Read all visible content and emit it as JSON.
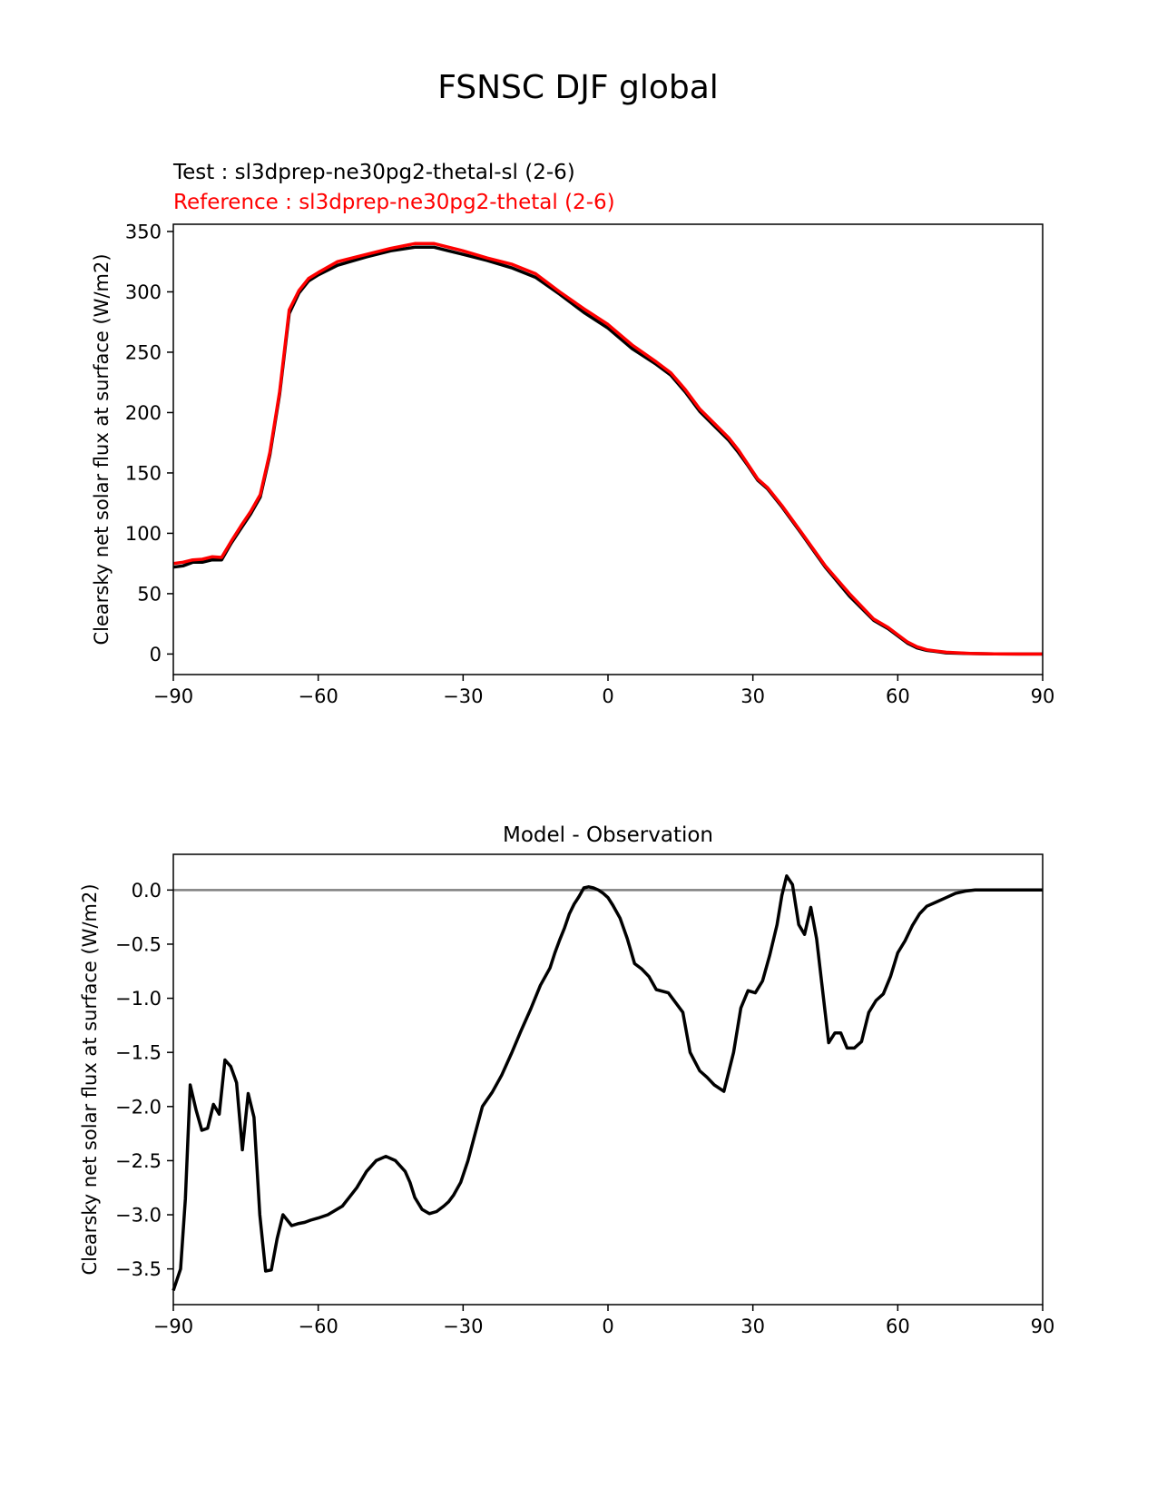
{
  "figure": {
    "title": "FSNSC DJF global",
    "test_label": "Test : sl3dprep-ne30pg2-thetal-sl (2-6)",
    "reference_label": "Reference : sl3dprep-ne30pg2-thetal (2-6)"
  },
  "colors": {
    "test": "#000000",
    "reference": "#ff0000",
    "zero_line": "#808080",
    "axes": "#000000"
  },
  "chart_data": [
    {
      "type": "line",
      "title": "",
      "xlabel": "",
      "ylabel": "Clearsky net solar flux at surface (W/m2)",
      "xlim": [
        -90,
        90
      ],
      "ylim": [
        -17,
        356
      ],
      "xticks": [
        -90,
        -60,
        -30,
        0,
        30,
        60,
        90
      ],
      "xtick_labels": [
        "−90",
        "−60",
        "−30",
        "0",
        "30",
        "60",
        "90"
      ],
      "yticks": [
        0,
        50,
        100,
        150,
        200,
        250,
        300,
        350
      ],
      "ytick_labels": [
        "0",
        "50",
        "100",
        "150",
        "200",
        "250",
        "300",
        "350"
      ],
      "grid": false,
      "series": [
        {
          "name": "Test : sl3dprep-ne30pg2-thetal-sl (2-6)",
          "color": "#000000",
          "x": [
            -90,
            -88,
            -86,
            -84,
            -82,
            -80,
            -78,
            -76,
            -74,
            -72,
            -70,
            -68,
            -66,
            -64,
            -62,
            -60,
            -56,
            -50,
            -45,
            -40,
            -36,
            -33,
            -30,
            -25,
            -20,
            -15,
            -10,
            -5,
            0,
            5,
            10,
            13,
            16,
            19,
            22,
            25,
            27,
            29,
            31,
            33,
            36,
            40,
            45,
            50,
            55,
            58,
            60,
            62,
            64,
            66,
            68,
            70,
            75,
            80,
            85,
            90
          ],
          "y": [
            72,
            73,
            76,
            76,
            78,
            78,
            92,
            104,
            116,
            130,
            165,
            215,
            282,
            299,
            309,
            314,
            322,
            329,
            334,
            337,
            337,
            334,
            331,
            326,
            320,
            312,
            298,
            283,
            270,
            253,
            240,
            231,
            217,
            201,
            189,
            177,
            167,
            156,
            144,
            137,
            122,
            100,
            72,
            48,
            28,
            21,
            15,
            9,
            5,
            3,
            2,
            1,
            0.4,
            0.1,
            0,
            0
          ]
        },
        {
          "name": "Reference : sl3dprep-ne30pg2-thetal (2-6)",
          "color": "#ff0000",
          "x": [
            -90,
            -88,
            -86,
            -84,
            -82,
            -80,
            -78,
            -76,
            -74,
            -72,
            -70,
            -68,
            -66,
            -64,
            -62,
            -60,
            -56,
            -50,
            -45,
            -40,
            -36,
            -33,
            -30,
            -25,
            -20,
            -15,
            -10,
            -5,
            0,
            5,
            10,
            13,
            16,
            19,
            22,
            25,
            27,
            29,
            31,
            33,
            36,
            40,
            45,
            50,
            55,
            58,
            60,
            62,
            64,
            66,
            68,
            70,
            75,
            80,
            85,
            90
          ],
          "y": [
            75,
            76,
            78,
            78.5,
            80.5,
            80,
            93.5,
            106,
            118,
            132,
            167,
            217,
            285,
            301,
            311,
            316,
            325,
            331,
            336,
            340,
            340,
            337,
            334,
            328,
            323,
            315,
            300,
            286,
            273,
            256,
            242,
            233,
            219,
            203,
            191,
            179,
            169,
            157,
            145,
            138,
            123,
            101,
            73,
            50,
            29,
            22,
            16,
            10,
            6,
            3.5,
            2.5,
            1.5,
            0.5,
            0.1,
            0,
            0
          ]
        }
      ]
    },
    {
      "type": "line",
      "title": "Model - Observation",
      "xlabel": "",
      "ylabel": "Clearsky net solar flux at surface (W/m2)",
      "xlim": [
        -90,
        90
      ],
      "ylim": [
        -3.83,
        0.33
      ],
      "xticks": [
        -90,
        -60,
        -30,
        0,
        30,
        60,
        90
      ],
      "xtick_labels": [
        "−90",
        "−60",
        "−30",
        "0",
        "30",
        "60",
        "90"
      ],
      "yticks": [
        0,
        -0.5,
        -1,
        -1.5,
        -2,
        -2.5,
        -3,
        -3.5
      ],
      "ytick_labels": [
        "0.0",
        "−0.5",
        "−1.0",
        "−1.5",
        "−2.0",
        "−2.5",
        "−3.0",
        "−3.5"
      ],
      "grid": false,
      "zero_line": 0,
      "series": [
        {
          "color": "#000000",
          "x": [
            -90,
            -88.5,
            -87.5,
            -86.5,
            -85.3,
            -84.1,
            -82.9,
            -81.7,
            -80.5,
            -79.3,
            -78.1,
            -76.9,
            -75.7,
            -74.5,
            -73.3,
            -72.1,
            -70.9,
            -69.7,
            -68.5,
            -67.3,
            -65.5,
            -64,
            -62.8,
            -61.6,
            -60,
            -58,
            -55,
            -52,
            -50,
            -48,
            -46,
            -44,
            -42,
            -41,
            -40,
            -38.5,
            -37,
            -35.5,
            -34,
            -33,
            -32,
            -30.5,
            -29,
            -27.5,
            -26,
            -24,
            -22,
            -20,
            -18,
            -16,
            -14,
            -12,
            -11,
            -10,
            -9,
            -8,
            -7,
            -6,
            -5,
            -4,
            -3,
            -2,
            -1,
            0,
            1,
            2.5,
            4,
            5.5,
            7,
            8.5,
            10,
            12.5,
            14,
            15.5,
            17,
            19,
            20.5,
            22,
            24,
            26,
            27.5,
            29,
            30.5,
            32,
            33.5,
            35,
            36,
            37,
            38.2,
            39.5,
            40.7,
            42,
            43.2,
            44.5,
            45.7,
            47,
            48.2,
            49.5,
            51,
            52.5,
            54,
            55.5,
            57,
            58.5,
            60,
            61.5,
            63,
            64.5,
            66,
            68,
            70,
            72,
            74,
            76,
            78,
            80,
            85,
            90
          ],
          "y": [
            -3.7,
            -3.5,
            -2.85,
            -1.8,
            -2.03,
            -2.22,
            -2.2,
            -1.98,
            -2.07,
            -1.57,
            -1.63,
            -1.78,
            -2.4,
            -1.88,
            -2.1,
            -3.0,
            -3.52,
            -3.51,
            -3.22,
            -3.0,
            -3.1,
            -3.08,
            -3.07,
            -3.05,
            -3.03,
            -3.0,
            -2.92,
            -2.75,
            -2.6,
            -2.5,
            -2.46,
            -2.5,
            -2.6,
            -2.7,
            -2.84,
            -2.95,
            -2.99,
            -2.97,
            -2.92,
            -2.88,
            -2.82,
            -2.7,
            -2.5,
            -2.25,
            -2.0,
            -1.87,
            -1.71,
            -1.51,
            -1.3,
            -1.1,
            -0.88,
            -0.72,
            -0.58,
            -0.46,
            -0.35,
            -0.22,
            -0.13,
            -0.06,
            0.02,
            0.03,
            0.02,
            0.0,
            -0.03,
            -0.07,
            -0.14,
            -0.26,
            -0.45,
            -0.68,
            -0.73,
            -0.8,
            -0.92,
            -0.95,
            -1.04,
            -1.13,
            -1.5,
            -1.67,
            -1.73,
            -1.8,
            -1.86,
            -1.5,
            -1.09,
            -0.93,
            -0.95,
            -0.84,
            -0.6,
            -0.32,
            -0.05,
            0.13,
            0.05,
            -0.32,
            -0.41,
            -0.16,
            -0.45,
            -0.95,
            -1.41,
            -1.32,
            -1.32,
            -1.46,
            -1.46,
            -1.4,
            -1.13,
            -1.02,
            -0.96,
            -0.8,
            -0.58,
            -0.47,
            -0.33,
            -0.22,
            -0.15,
            -0.11,
            -0.07,
            -0.03,
            -0.01,
            0.0,
            0.0,
            0.0,
            0.0,
            0.0
          ]
        }
      ]
    }
  ]
}
